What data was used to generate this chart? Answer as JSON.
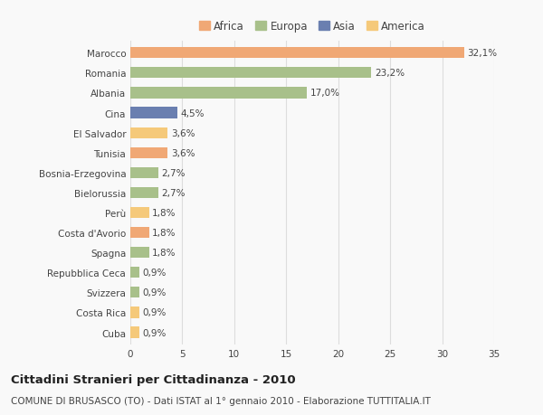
{
  "categories": [
    "Marocco",
    "Romania",
    "Albania",
    "Cina",
    "El Salvador",
    "Tunisia",
    "Bosnia-Erzegovina",
    "Bielorussia",
    "Perù",
    "Costa d'Avorio",
    "Spagna",
    "Repubblica Ceca",
    "Svizzera",
    "Costa Rica",
    "Cuba"
  ],
  "values": [
    32.1,
    23.2,
    17.0,
    4.5,
    3.6,
    3.6,
    2.7,
    2.7,
    1.8,
    1.8,
    1.8,
    0.9,
    0.9,
    0.9,
    0.9
  ],
  "labels": [
    "32,1%",
    "23,2%",
    "17,0%",
    "4,5%",
    "3,6%",
    "3,6%",
    "2,7%",
    "2,7%",
    "1,8%",
    "1,8%",
    "1,8%",
    "0,9%",
    "0,9%",
    "0,9%",
    "0,9%"
  ],
  "continents": [
    "Africa",
    "Europa",
    "Europa",
    "Asia",
    "America",
    "Africa",
    "Europa",
    "Europa",
    "America",
    "Africa",
    "Europa",
    "Europa",
    "Europa",
    "America",
    "America"
  ],
  "continent_colors": {
    "Africa": "#F0A875",
    "Europa": "#A8C08A",
    "Asia": "#6A7FB0",
    "America": "#F5C97A"
  },
  "legend_order": [
    "Africa",
    "Europa",
    "Asia",
    "America"
  ],
  "xlim": [
    0,
    35
  ],
  "xticks": [
    0,
    5,
    10,
    15,
    20,
    25,
    30,
    35
  ],
  "title": "Cittadini Stranieri per Cittadinanza - 2010",
  "subtitle": "COMUNE DI BRUSASCO (TO) - Dati ISTAT al 1° gennaio 2010 - Elaborazione TUTTITALIA.IT",
  "background_color": "#f9f9f9",
  "grid_color": "#dddddd",
  "bar_height": 0.55,
  "label_fontsize": 7.5,
  "title_fontsize": 9.5,
  "subtitle_fontsize": 7.5,
  "tick_fontsize": 7.5,
  "legend_fontsize": 8.5
}
